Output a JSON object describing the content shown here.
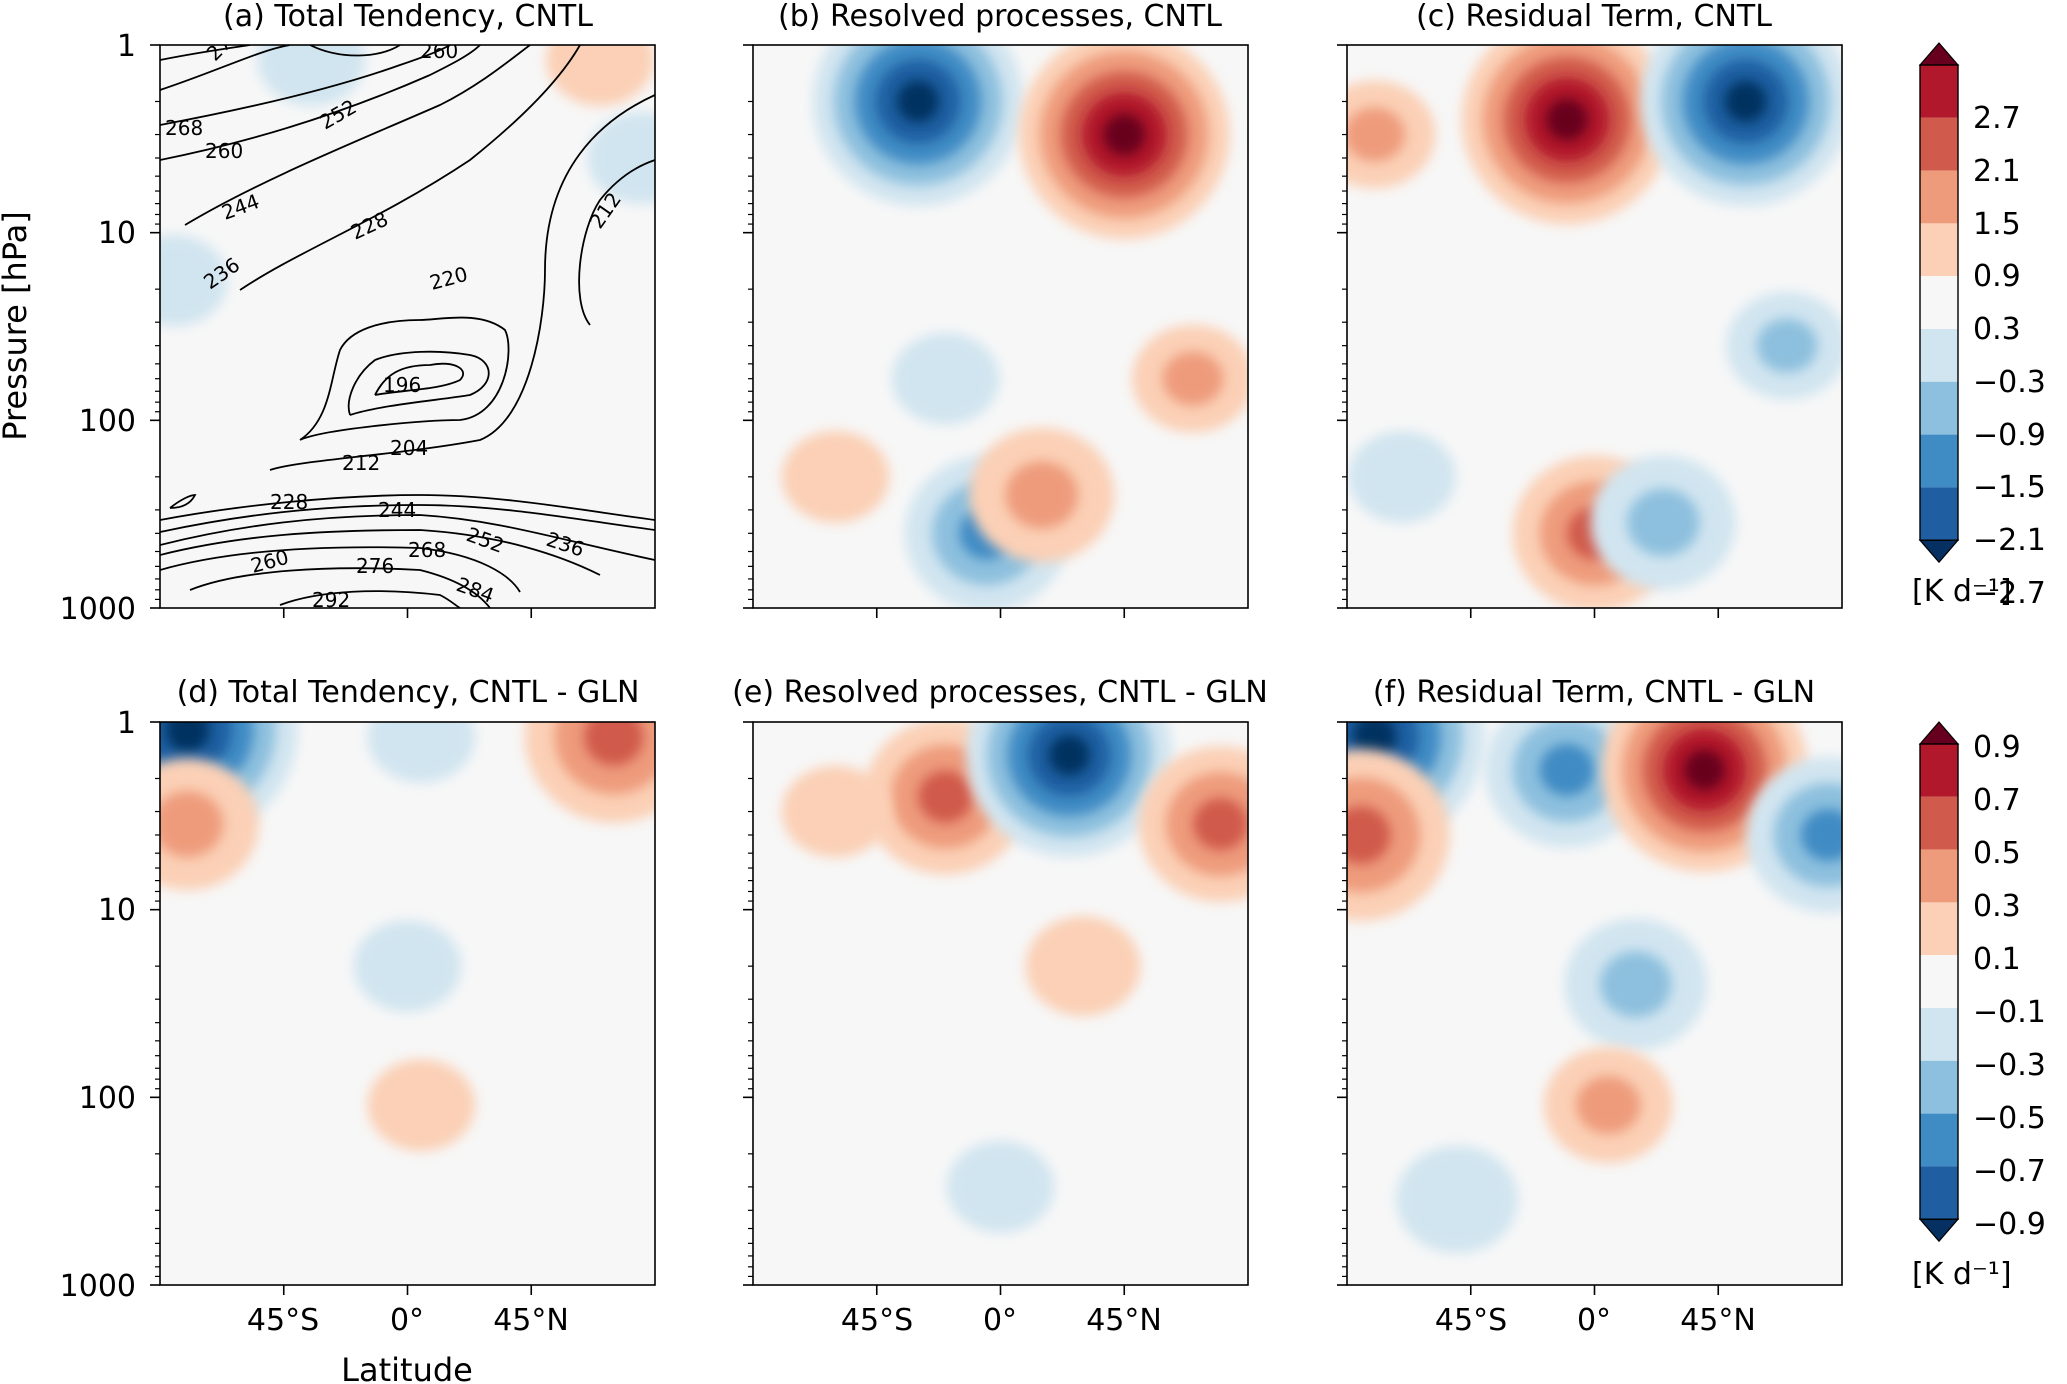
{
  "chart_data": [
    {
      "id": "a",
      "type": "contour",
      "title": "(a) Total Tendency, CNTL",
      "ylabel": "Pressure [hPa]",
      "xlabel": "",
      "y_scale": "log",
      "ylim": [
        1000,
        1
      ],
      "y_ticks": [
        "1",
        "10",
        "100",
        "1000"
      ],
      "x_ticks": [],
      "fill_blobs": [
        {
          "lat": -35,
          "p": 1.2,
          "value": -0.6
        },
        {
          "lat": 70,
          "p": 1.2,
          "value": 0.6
        },
        {
          "lat": 85,
          "p": 4,
          "value": -0.6
        },
        {
          "lat": -85,
          "p": 18,
          "value": -0.6
        }
      ],
      "contour_labels": [
        "276",
        "260",
        "268",
        "260",
        "252",
        "244",
        "228",
        "212",
        "236",
        "220",
        "196",
        "204",
        "212",
        "228",
        "244",
        "252",
        "236",
        "260",
        "268",
        "276",
        "284",
        "292"
      ]
    },
    {
      "id": "b",
      "type": "heatmap",
      "title": "(b) Resolved processes, CNTL",
      "y_scale": "log",
      "ylim": [
        1000,
        1
      ],
      "y_ticks": [],
      "x_ticks": [],
      "blobs": [
        {
          "lat": -30,
          "p": 2,
          "value": -2.8
        },
        {
          "lat": 45,
          "p": 3,
          "value": 2.8
        },
        {
          "lat": -5,
          "p": 400,
          "value": -1.8
        },
        {
          "lat": 15,
          "p": 250,
          "value": 1.4
        },
        {
          "lat": 70,
          "p": 60,
          "value": 0.9
        },
        {
          "lat": -60,
          "p": 200,
          "value": 0.6
        },
        {
          "lat": -20,
          "p": 60,
          "value": -0.6
        }
      ]
    },
    {
      "id": "c",
      "type": "heatmap",
      "title": "(c) Residual Term, CNTL",
      "y_scale": "log",
      "ylim": [
        1000,
        1
      ],
      "y_ticks": [],
      "x_ticks": [],
      "blobs": [
        {
          "lat": -10,
          "p": 2.5,
          "value": 2.8
        },
        {
          "lat": 55,
          "p": 2,
          "value": -2.8
        },
        {
          "lat": 0,
          "p": 400,
          "value": 1.8
        },
        {
          "lat": 25,
          "p": 350,
          "value": -1.4
        },
        {
          "lat": 70,
          "p": 40,
          "value": -0.9
        },
        {
          "lat": -70,
          "p": 200,
          "value": -0.6
        },
        {
          "lat": -80,
          "p": 3,
          "value": 0.9
        }
      ]
    },
    {
      "id": "d",
      "type": "heatmap",
      "title": "(d) Total Tendency, CNTL - GLN",
      "ylabel": "",
      "xlabel": "Latitude",
      "y_scale": "log",
      "ylim": [
        1000,
        1
      ],
      "y_ticks": [
        "1",
        "10",
        "100",
        "1000"
      ],
      "x_ticks": [
        "45°S",
        "0°",
        "45°N"
      ],
      "blobs": [
        {
          "lat": -80,
          "p": 1.1,
          "value": -1.0
        },
        {
          "lat": 75,
          "p": 1.2,
          "value": 0.7
        },
        {
          "lat": -80,
          "p": 3.5,
          "value": 0.45
        },
        {
          "lat": 0,
          "p": 20,
          "value": -0.2
        },
        {
          "lat": 5,
          "p": 110,
          "value": 0.2
        },
        {
          "lat": 5,
          "p": 1.2,
          "value": -0.2
        }
      ]
    },
    {
      "id": "e",
      "type": "heatmap",
      "title": "(e) Resolved processes, CNTL - GLN",
      "y_scale": "log",
      "ylim": [
        1000,
        1
      ],
      "y_ticks": [],
      "x_ticks": [
        "45°S",
        "0°",
        "45°N"
      ],
      "blobs": [
        {
          "lat": -20,
          "p": 2.5,
          "value": 0.6
        },
        {
          "lat": 25,
          "p": 1.5,
          "value": -0.9
        },
        {
          "lat": 80,
          "p": 3.5,
          "value": 0.6
        },
        {
          "lat": 30,
          "p": 20,
          "value": 0.25
        },
        {
          "lat": 0,
          "p": 300,
          "value": -0.2
        },
        {
          "lat": -60,
          "p": 3,
          "value": 0.2
        }
      ]
    },
    {
      "id": "f",
      "type": "heatmap",
      "title": "(f) Residual Term, CNTL - GLN",
      "y_scale": "log",
      "ylim": [
        1000,
        1
      ],
      "y_ticks": [],
      "x_ticks": [
        "45°S",
        "0°",
        "45°N"
      ],
      "blobs": [
        {
          "lat": -80,
          "p": 1.2,
          "value": -1.0
        },
        {
          "lat": -10,
          "p": 1.8,
          "value": -0.6
        },
        {
          "lat": 40,
          "p": 1.8,
          "value": 0.9
        },
        {
          "lat": -85,
          "p": 4,
          "value": 0.7
        },
        {
          "lat": 85,
          "p": 4,
          "value": -0.6
        },
        {
          "lat": 15,
          "p": 25,
          "value": -0.45
        },
        {
          "lat": 5,
          "p": 110,
          "value": 0.35
        },
        {
          "lat": -50,
          "p": 350,
          "value": -0.3
        }
      ]
    }
  ],
  "colorbars": [
    {
      "id": "cb1",
      "ticks": [
        "2.7",
        "2.1",
        "1.5",
        "0.9",
        "0.3",
        "−0.3",
        "−0.9",
        "−1.5",
        "−2.1",
        "−2.7"
      ],
      "units": "[K d⁻¹]",
      "vmin": -3.0,
      "vmax": 3.0
    },
    {
      "id": "cb2",
      "ticks": [
        "0.9",
        "0.7",
        "0.5",
        "0.3",
        "0.1",
        "−0.1",
        "−0.3",
        "−0.5",
        "−0.7",
        "−0.9"
      ],
      "units": "[K d⁻¹]",
      "vmin": -1.0,
      "vmax": 1.0
    }
  ],
  "colors": [
    "#053061",
    "#1f5fa1",
    "#3f8bc4",
    "#8dc0de",
    "#d1e5f0",
    "#f7f7f7",
    "#fbd0b6",
    "#ee9b7b",
    "#d05a4b",
    "#b1182b",
    "#67001f"
  ]
}
